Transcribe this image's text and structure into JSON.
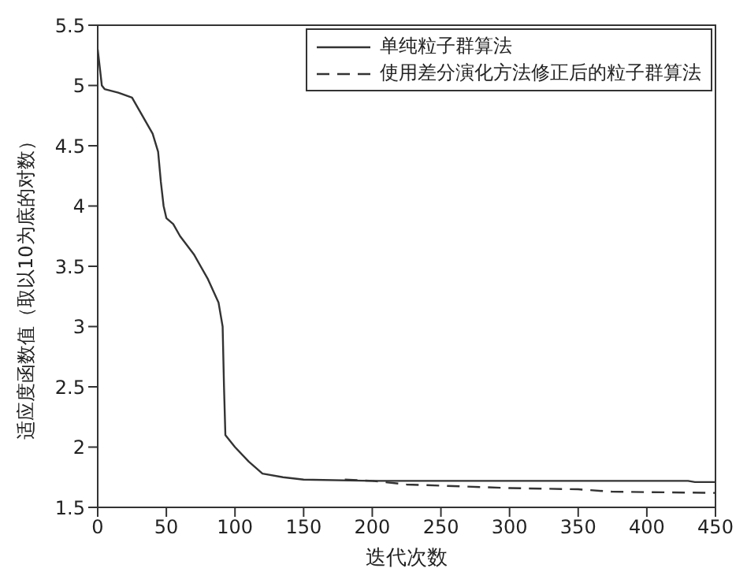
{
  "chart_data": {
    "type": "line",
    "xlabel": "迭代次数",
    "ylabel": "适应度函数值（取以10为底的对数）",
    "xlim": [
      0,
      450
    ],
    "xticks": [
      0,
      50,
      100,
      150,
      200,
      250,
      300,
      350,
      400,
      450
    ],
    "ylim": [
      1.5,
      5.5
    ],
    "yticks": [
      1.5,
      2,
      2.5,
      3,
      3.5,
      4,
      4.5,
      5,
      5.5
    ],
    "legend": "top right",
    "marker": "none",
    "series": [
      {
        "name": "单纯粒子群算法",
        "color": "#333333",
        "line_style": "solid",
        "x": [
          0,
          1,
          3,
          5,
          15,
          25,
          30,
          35,
          40,
          44,
          46,
          48,
          50,
          55,
          60,
          70,
          80,
          88,
          91,
          92,
          93,
          100,
          110,
          120,
          135,
          150,
          200,
          300,
          430,
          435,
          450
        ],
        "values": [
          5.3,
          5.2,
          5.0,
          4.97,
          4.94,
          4.9,
          4.8,
          4.7,
          4.6,
          4.45,
          4.2,
          4.0,
          3.9,
          3.85,
          3.75,
          3.6,
          3.4,
          3.2,
          3.0,
          2.5,
          2.1,
          2.0,
          1.88,
          1.78,
          1.75,
          1.73,
          1.72,
          1.72,
          1.72,
          1.71,
          1.71
        ]
      },
      {
        "name": "使用差分演化方法修正后的粒子群算法",
        "color": "#333333",
        "line_style": "dashed",
        "x": [
          180,
          200,
          225,
          250,
          300,
          350,
          375,
          450
        ],
        "values": [
          1.73,
          1.72,
          1.69,
          1.68,
          1.66,
          1.65,
          1.63,
          1.62
        ]
      }
    ]
  }
}
